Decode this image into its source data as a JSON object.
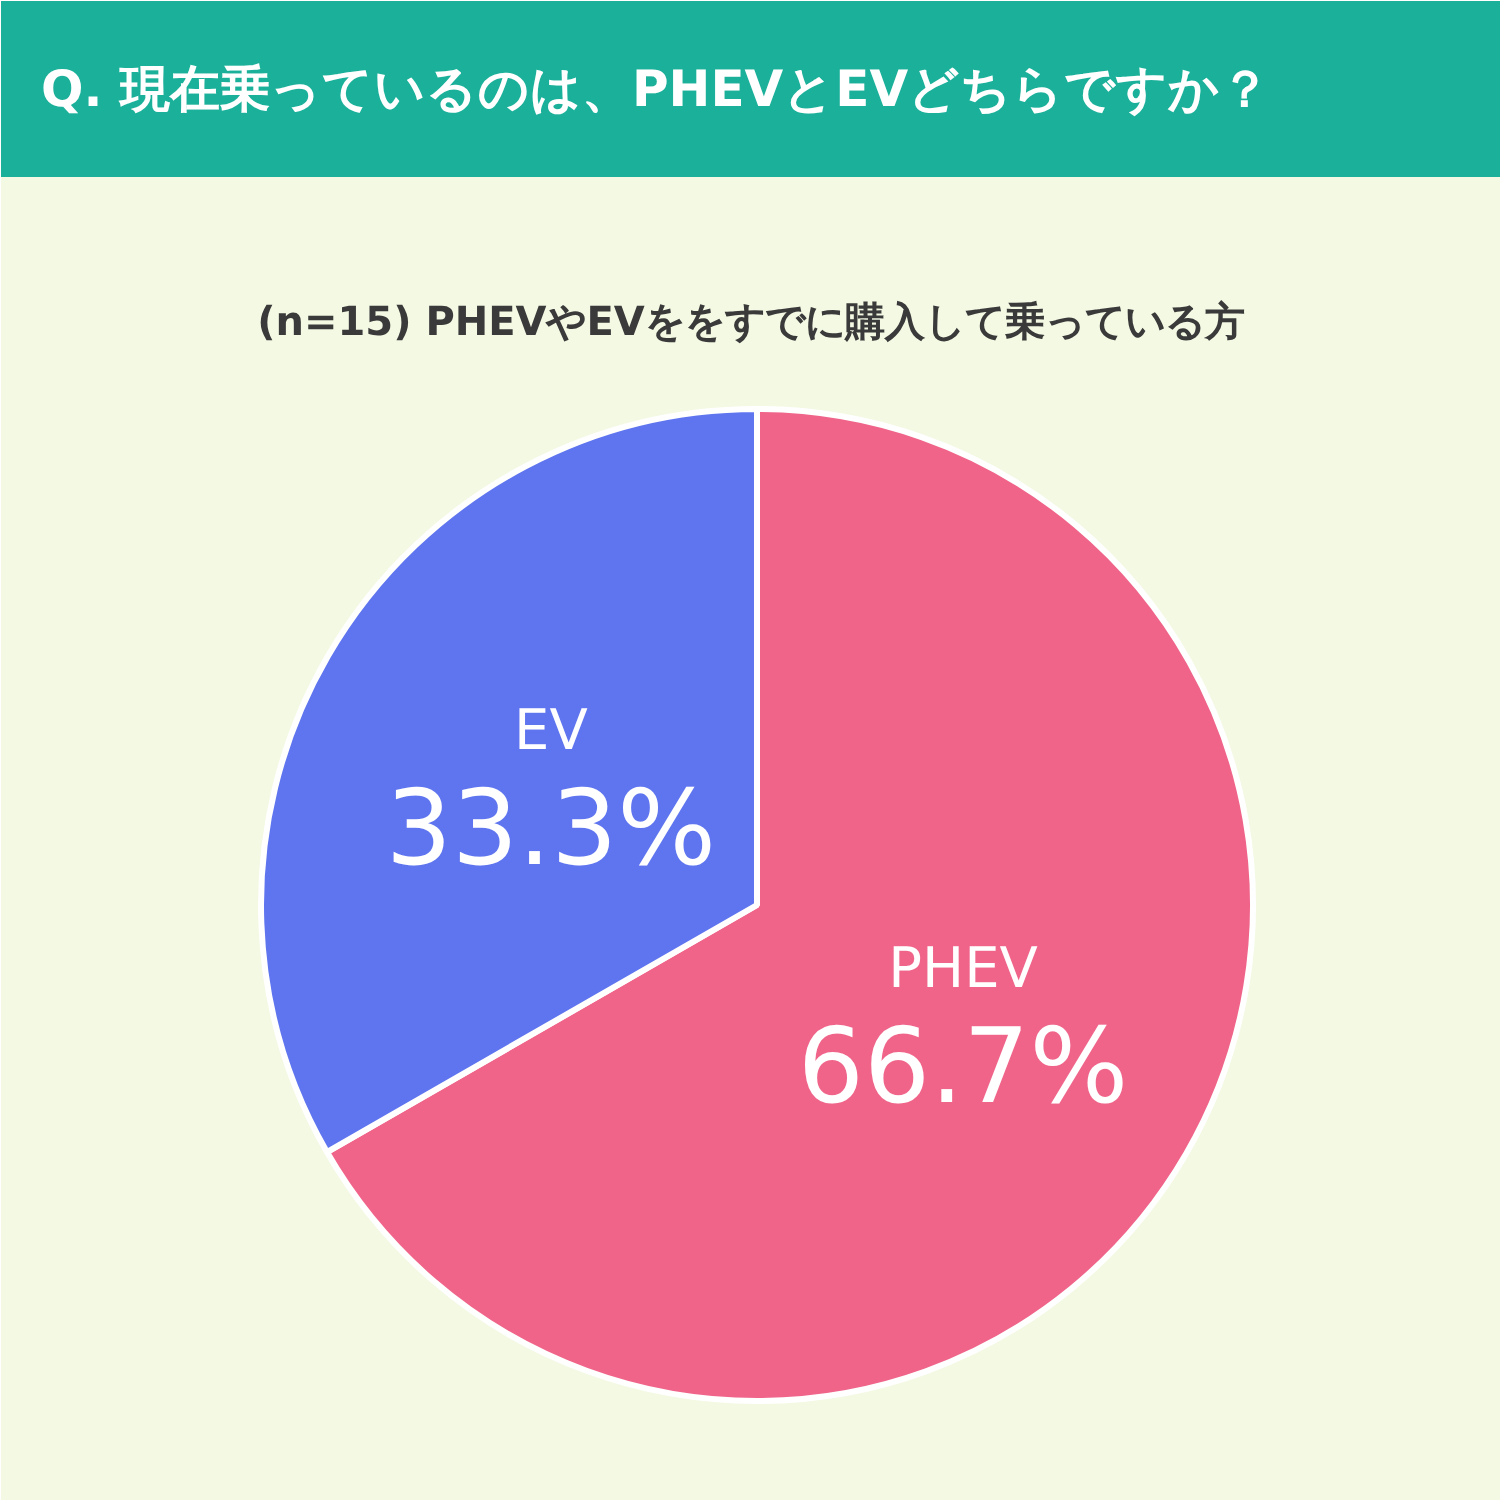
{
  "chart_data": {
    "type": "pie",
    "title": "Q. 現在乗っているのは、PHEVとEVどちらですか？",
    "subtitle": "(n=15) PHEVやEVををすでに購入して乗っている方",
    "categories": [
      "PHEV",
      "EV"
    ],
    "values": [
      66.7,
      33.3
    ],
    "colors": [
      "#f0648a",
      "#5f75ef"
    ],
    "value_labels": [
      "66.7%",
      "33.3%"
    ]
  }
}
